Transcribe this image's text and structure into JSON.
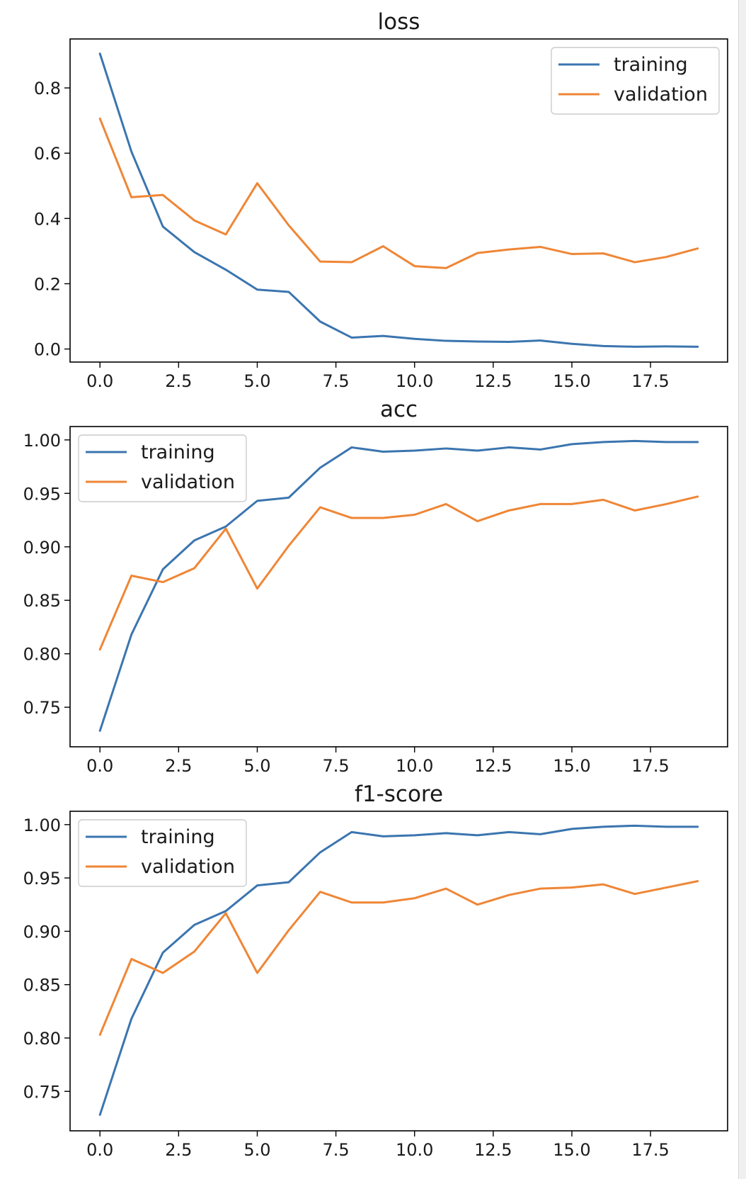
{
  "colors": {
    "training": "#3b75af",
    "validation": "#ef8636",
    "frame": "#000000",
    "legend_border": "#cccccc"
  },
  "chart_data": [
    {
      "type": "line",
      "title": "loss",
      "xlabel": "",
      "ylabel": "",
      "xlim": [
        -0.95,
        19.95
      ],
      "ylim": [
        -0.04,
        0.95
      ],
      "xticks": [
        0.0,
        2.5,
        5.0,
        7.5,
        10.0,
        12.5,
        15.0,
        17.5
      ],
      "xtick_labels": [
        "0.0",
        "2.5",
        "5.0",
        "7.5",
        "10.0",
        "12.5",
        "15.0",
        "17.5"
      ],
      "yticks": [
        0.0,
        0.2,
        0.4,
        0.6,
        0.8
      ],
      "ytick_labels": [
        "0.0",
        "0.2",
        "0.4",
        "0.6",
        "0.8"
      ],
      "legend_position": "upper right",
      "x": [
        0,
        1,
        2,
        3,
        4,
        5,
        6,
        7,
        8,
        9,
        10,
        11,
        12,
        13,
        14,
        15,
        16,
        17,
        18,
        19
      ],
      "series": [
        {
          "name": "training",
          "values": [
            0.905,
            0.605,
            0.375,
            0.297,
            0.243,
            0.182,
            0.175,
            0.084,
            0.035,
            0.04,
            0.031,
            0.025,
            0.023,
            0.022,
            0.026,
            0.016,
            0.009,
            0.007,
            0.008,
            0.007
          ]
        },
        {
          "name": "validation",
          "values": [
            0.706,
            0.465,
            0.472,
            0.394,
            0.351,
            0.508,
            0.379,
            0.268,
            0.266,
            0.315,
            0.254,
            0.248,
            0.294,
            0.305,
            0.313,
            0.291,
            0.293,
            0.266,
            0.282,
            0.308
          ]
        }
      ]
    },
    {
      "type": "line",
      "title": "acc",
      "xlabel": "",
      "ylabel": "",
      "xlim": [
        -0.95,
        19.95
      ],
      "ylim": [
        0.713,
        1.0125
      ],
      "xticks": [
        0.0,
        2.5,
        5.0,
        7.5,
        10.0,
        12.5,
        15.0,
        17.5
      ],
      "xtick_labels": [
        "0.0",
        "2.5",
        "5.0",
        "7.5",
        "10.0",
        "12.5",
        "15.0",
        "17.5"
      ],
      "yticks": [
        0.75,
        0.8,
        0.85,
        0.9,
        0.95,
        1.0
      ],
      "ytick_labels": [
        "0.75",
        "0.80",
        "0.85",
        "0.90",
        "0.95",
        "1.00"
      ],
      "legend_position": "upper left",
      "x": [
        0,
        1,
        2,
        3,
        4,
        5,
        6,
        7,
        8,
        9,
        10,
        11,
        12,
        13,
        14,
        15,
        16,
        17,
        18,
        19
      ],
      "series": [
        {
          "name": "training",
          "values": [
            0.728,
            0.818,
            0.879,
            0.906,
            0.919,
            0.943,
            0.946,
            0.974,
            0.993,
            0.989,
            0.99,
            0.992,
            0.99,
            0.993,
            0.991,
            0.996,
            0.998,
            0.999,
            0.998,
            0.998
          ]
        },
        {
          "name": "validation",
          "values": [
            0.804,
            0.873,
            0.867,
            0.88,
            0.917,
            0.861,
            0.901,
            0.937,
            0.927,
            0.927,
            0.93,
            0.94,
            0.924,
            0.934,
            0.94,
            0.94,
            0.944,
            0.934,
            0.94,
            0.947
          ]
        }
      ]
    },
    {
      "type": "line",
      "title": "f1-score",
      "xlabel": "",
      "ylabel": "",
      "xlim": [
        -0.95,
        19.95
      ],
      "ylim": [
        0.713,
        1.0125
      ],
      "xticks": [
        0.0,
        2.5,
        5.0,
        7.5,
        10.0,
        12.5,
        15.0,
        17.5
      ],
      "xtick_labels": [
        "0.0",
        "2.5",
        "5.0",
        "7.5",
        "10.0",
        "12.5",
        "15.0",
        "17.5"
      ],
      "yticks": [
        0.75,
        0.8,
        0.85,
        0.9,
        0.95,
        1.0
      ],
      "ytick_labels": [
        "0.75",
        "0.80",
        "0.85",
        "0.90",
        "0.95",
        "1.00"
      ],
      "legend_position": "upper left",
      "x": [
        0,
        1,
        2,
        3,
        4,
        5,
        6,
        7,
        8,
        9,
        10,
        11,
        12,
        13,
        14,
        15,
        16,
        17,
        18,
        19
      ],
      "series": [
        {
          "name": "training",
          "values": [
            0.728,
            0.818,
            0.88,
            0.906,
            0.919,
            0.943,
            0.946,
            0.974,
            0.993,
            0.989,
            0.99,
            0.992,
            0.99,
            0.993,
            0.991,
            0.996,
            0.998,
            0.999,
            0.998,
            0.998
          ]
        },
        {
          "name": "validation",
          "values": [
            0.803,
            0.874,
            0.861,
            0.881,
            0.917,
            0.861,
            0.901,
            0.937,
            0.927,
            0.927,
            0.931,
            0.94,
            0.925,
            0.934,
            0.94,
            0.941,
            0.944,
            0.935,
            0.941,
            0.947
          ]
        }
      ]
    }
  ]
}
